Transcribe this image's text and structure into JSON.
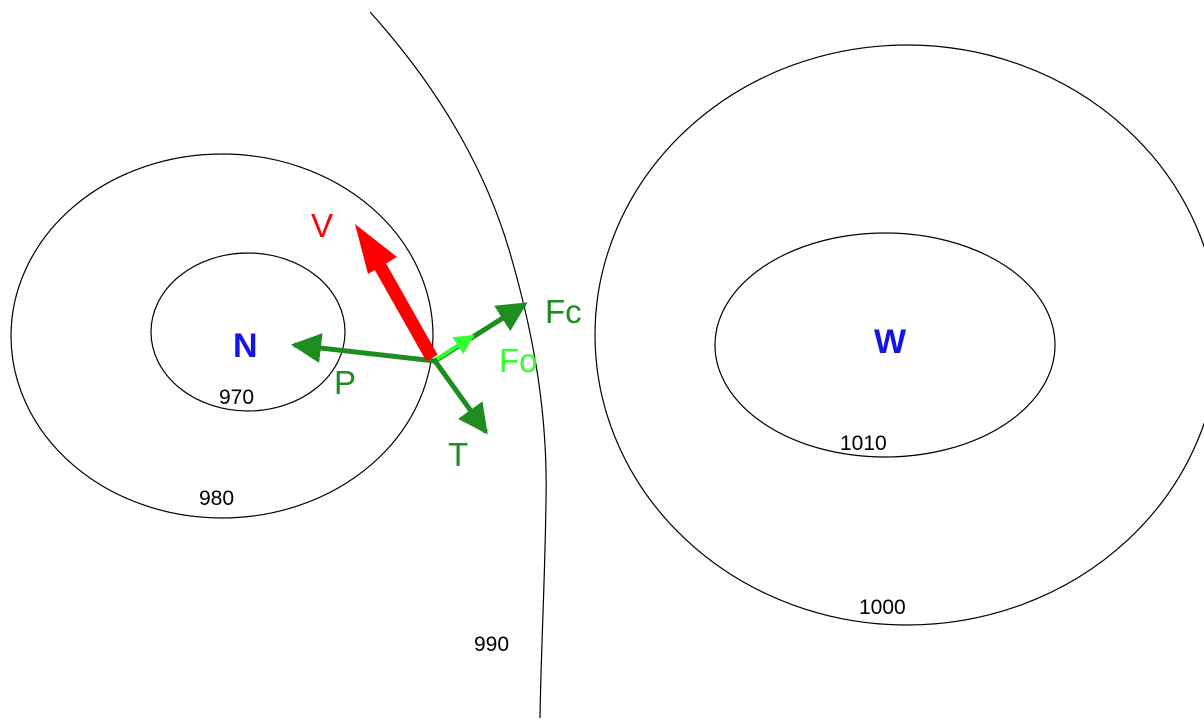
{
  "colors": {
    "isobar": "#000000",
    "center": "#1414e6",
    "velocity": "#ff0000",
    "force": "#1e8c1e",
    "centrifugal_small": "#33ff33"
  },
  "centers": {
    "low": "N",
    "high": "W"
  },
  "isobars": {
    "low_inner": "970",
    "low_outer": "980",
    "divide": "990",
    "high_outer": "1000",
    "high_inner": "1010"
  },
  "vectors": {
    "velocity": "V",
    "pressure_gradient": "P",
    "coriolis": "Fc",
    "centrifugal": "Fo",
    "friction": "T"
  }
}
